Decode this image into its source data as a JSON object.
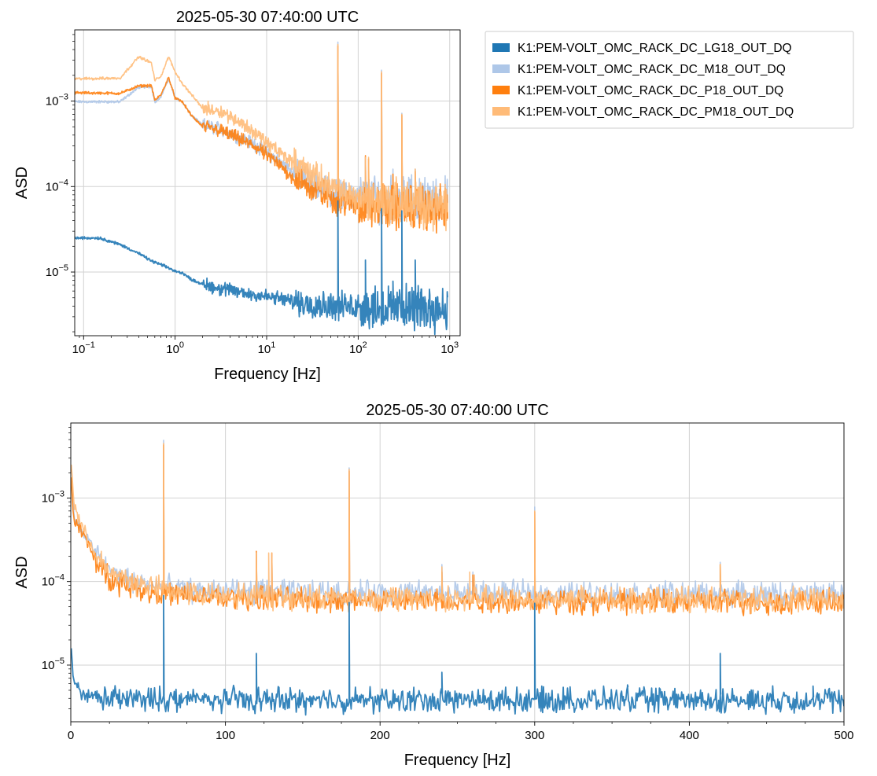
{
  "colors": {
    "LG18": "#1f77b4",
    "M18": "#aec7e8",
    "P18": "#ff7f0e",
    "PM18": "#ffbb78"
  },
  "chart_data": [
    {
      "type": "line",
      "title": "2025-05-30 07:40:00 UTC",
      "xlabel": "Frequency [Hz]",
      "ylabel": "ASD",
      "xscale": "log",
      "yscale": "log",
      "xlim": [
        0.08,
        1300
      ],
      "ylim": [
        1.8e-06,
        0.0068
      ],
      "grid": true,
      "xticks": [
        {
          "v": 0.1,
          "m": "10",
          "e": "−1"
        },
        {
          "v": 1,
          "m": "10",
          "e": "0"
        },
        {
          "v": 10,
          "m": "10",
          "e": "1"
        },
        {
          "v": 100,
          "m": "10",
          "e": "2"
        },
        {
          "v": 1000,
          "m": "10",
          "e": "3"
        }
      ],
      "yticks": [
        {
          "v": 1e-05,
          "m": "10",
          "e": "−5"
        },
        {
          "v": 0.0001,
          "m": "10",
          "e": "−4"
        },
        {
          "v": 0.001,
          "m": "10",
          "e": "−3"
        }
      ],
      "legend": {
        "position": "outside-right",
        "entries": [
          {
            "label": "K1:PEM-VOLT_OMC_RACK_DC_LG18_OUT_DQ",
            "color": "#1f77b4"
          },
          {
            "label": "K1:PEM-VOLT_OMC_RACK_DC_M18_OUT_DQ",
            "color": "#aec7e8"
          },
          {
            "label": "K1:PEM-VOLT_OMC_RACK_DC_P18_OUT_DQ",
            "color": "#ff7f0e"
          },
          {
            "label": "K1:PEM-VOLT_OMC_RACK_DC_PM18_OUT_DQ",
            "color": "#ffbb78"
          }
        ]
      },
      "series": [
        {
          "key": "M18",
          "color": "#aec7e8",
          "x": [
            0.08,
            0.25,
            0.4,
            0.55,
            0.6,
            0.7,
            0.85,
            1.0,
            1.2,
            1.5,
            2,
            3,
            5,
            8,
            12,
            20,
            35,
            60,
            120,
            250,
            500,
            950
          ],
          "y": [
            0.00098,
            0.00098,
            0.00145,
            0.00148,
            0.00098,
            0.00112,
            0.00182,
            0.0011,
            0.00098,
            0.00068,
            0.00052,
            0.00048,
            0.00038,
            0.0003,
            0.000218,
            0.000145,
            0.0001,
            8.2e-05,
            7.4e-05,
            7.2e-05,
            7.1e-05,
            7e-05
          ],
          "peaks": [
            [
              60,
              0.0049
            ],
            [
              120,
              0.00022
            ],
            [
              180,
              0.0023
            ],
            [
              240,
              0.00016
            ],
            [
              300,
              0.00072
            ],
            [
              420,
              0.00016
            ]
          ]
        },
        {
          "key": "P18",
          "color": "#ff7f0e",
          "x": [
            0.08,
            0.25,
            0.4,
            0.55,
            0.6,
            0.7,
            0.85,
            1.0,
            1.2,
            1.5,
            2,
            3,
            5,
            8,
            12,
            20,
            35,
            60,
            120,
            250,
            500,
            950
          ],
          "y": [
            0.00125,
            0.00123,
            0.0015,
            0.00152,
            0.00102,
            0.00118,
            0.0019,
            0.00108,
            0.00098,
            0.00068,
            0.0005,
            0.00046,
            0.00036,
            0.00028,
            0.0002,
            0.000125,
            8.8e-05,
            6.8e-05,
            6e-05,
            5.7e-05,
            5.6e-05,
            5.5e-05
          ],
          "peaks": [
            [
              60,
              0.0044
            ],
            [
              120,
              0.00023
            ],
            [
              130,
              0.00021
            ],
            [
              180,
              0.0021
            ],
            [
              240,
              0.00014
            ],
            [
              300,
              0.00068
            ],
            [
              420,
              0.00015
            ]
          ]
        },
        {
          "key": "PM18",
          "color": "#ffbb78",
          "x": [
            0.08,
            0.25,
            0.4,
            0.55,
            0.6,
            0.7,
            0.85,
            1.0,
            1.2,
            1.5,
            2,
            3,
            5,
            8,
            12,
            20,
            35,
            60,
            120,
            250,
            500,
            950
          ],
          "y": [
            0.00182,
            0.00185,
            0.0033,
            0.0028,
            0.00175,
            0.00195,
            0.0033,
            0.0022,
            0.0016,
            0.0012,
            0.00082,
            0.00078,
            0.00058,
            0.0004,
            0.00028,
            0.00019,
            0.00013,
            8.8e-05,
            7e-05,
            6.4e-05,
            6.2e-05,
            6e-05
          ],
          "peaks": [
            [
              60,
              0.0046
            ],
            [
              120,
              0.00022
            ],
            [
              130,
              0.00022
            ],
            [
              180,
              0.0022
            ],
            [
              260,
              0.00013
            ],
            [
              300,
              0.0007
            ],
            [
              420,
              0.00016
            ]
          ]
        },
        {
          "key": "LG18",
          "color": "#1f77b4",
          "x": [
            0.08,
            0.15,
            0.25,
            0.4,
            0.55,
            0.7,
            0.85,
            1.0,
            1.2,
            1.5,
            2,
            3,
            5,
            8,
            12,
            20,
            35,
            60,
            120,
            250,
            500,
            950
          ],
          "y": [
            2.5e-05,
            2.5e-05,
            2.1e-05,
            1.65e-05,
            1.35e-05,
            1.22e-05,
            1.12e-05,
            1.02e-05,
            9.8e-06,
            8.2e-06,
            7.2e-06,
            6.5e-06,
            5.8e-06,
            5.4e-06,
            5e-06,
            4.5e-06,
            4.2e-06,
            4e-06,
            3.9e-06,
            3.8e-06,
            3.8e-06,
            3.8e-06
          ],
          "peaks": [
            [
              60,
              6.8e-05
            ],
            [
              120,
              1.38e-05
            ],
            [
              180,
              5.5e-05
            ],
            [
              240,
              7.8e-06
            ],
            [
              300,
              5.2e-05
            ],
            [
              360,
              5.8e-06
            ],
            [
              420,
              1.38e-05
            ],
            [
              480,
              5.8e-06
            ]
          ]
        }
      ]
    },
    {
      "type": "line",
      "title": "2025-05-30 07:40:00 UTC",
      "xlabel": "Frequency [Hz]",
      "ylabel": "ASD",
      "xscale": "linear",
      "yscale": "log",
      "xlim": [
        0,
        500
      ],
      "ylim": [
        2.1e-06,
        0.0079
      ],
      "grid": true,
      "xticks": [
        {
          "v": 0,
          "t": "0"
        },
        {
          "v": 100,
          "t": "100"
        },
        {
          "v": 200,
          "t": "200"
        },
        {
          "v": 300,
          "t": "300"
        },
        {
          "v": 400,
          "t": "400"
        },
        {
          "v": 500,
          "t": "500"
        }
      ],
      "yticks": [
        {
          "v": 1e-05,
          "m": "10",
          "e": "−5"
        },
        {
          "v": 0.0001,
          "m": "10",
          "e": "−4"
        },
        {
          "v": 0.001,
          "m": "10",
          "e": "−3"
        }
      ],
      "series": [
        {
          "key": "M18",
          "color": "#aec7e8",
          "x": [
            0,
            1,
            2,
            3,
            5,
            8,
            12,
            16,
            20,
            25,
            30,
            40,
            50,
            60,
            80,
            120,
            200,
            300,
            400,
            500
          ],
          "y": [
            0.0016,
            0.00098,
            0.00068,
            0.00052,
            0.00048,
            0.00038,
            0.0003,
            0.00022,
            0.00017,
            0.00014,
            0.00012,
            0.0001,
            9.2e-05,
            8.5e-05,
            7.8e-05,
            7.5e-05,
            7.3e-05,
            7.2e-05,
            7.1e-05,
            7e-05
          ],
          "peaks": [
            [
              60,
              0.0049
            ],
            [
              120,
              0.00022
            ],
            [
              130,
              0.00021
            ],
            [
              180,
              0.0023
            ],
            [
              240,
              0.00016
            ],
            [
              260,
              0.00013
            ],
            [
              300,
              0.00078
            ],
            [
              420,
              0.00017
            ]
          ]
        },
        {
          "key": "P18",
          "color": "#ff7f0e",
          "x": [
            0,
            1,
            2,
            3,
            5,
            8,
            12,
            16,
            20,
            25,
            30,
            40,
            50,
            60,
            80,
            120,
            200,
            300,
            400,
            500
          ],
          "y": [
            0.0019,
            0.00098,
            0.00062,
            0.0005,
            0.00046,
            0.00036,
            0.00026,
            0.00018,
            0.000135,
            0.00011,
            0.0001,
            8.8e-05,
            7.8e-05,
            7.2e-05,
            6.6e-05,
            6.2e-05,
            5.9e-05,
            5.8e-05,
            5.7e-05,
            5.6e-05
          ],
          "peaks": [
            [
              60,
              0.0043
            ],
            [
              120,
              0.00023
            ],
            [
              130,
              0.00022
            ],
            [
              180,
              0.0021
            ],
            [
              240,
              0.00013
            ],
            [
              260,
              0.00012
            ],
            [
              300,
              0.00068
            ],
            [
              420,
              0.00016
            ]
          ]
        },
        {
          "key": "PM18",
          "color": "#ffbb78",
          "x": [
            0,
            1,
            2,
            3,
            5,
            8,
            12,
            16,
            20,
            25,
            30,
            40,
            50,
            60,
            80,
            120,
            200,
            300,
            400,
            500
          ],
          "y": [
            0.0033,
            0.0016,
            0.00082,
            0.00078,
            0.00058,
            0.00042,
            0.0003,
            0.00021,
            0.00016,
            0.00013,
            0.000115,
            0.0001,
            8.8e-05,
            8e-05,
            7.2e-05,
            6.6e-05,
            6.3e-05,
            6.2e-05,
            6.1e-05,
            6e-05
          ],
          "peaks": [
            [
              60,
              0.0045
            ],
            [
              120,
              0.00022
            ],
            [
              128,
              0.00022
            ],
            [
              130,
              0.00022
            ],
            [
              180,
              0.0022
            ],
            [
              240,
              0.00015
            ],
            [
              258,
              0.00013
            ],
            [
              261,
              0.00012
            ],
            [
              300,
              0.0007
            ],
            [
              420,
              0.00016
            ]
          ]
        },
        {
          "key": "LG18",
          "color": "#1f77b4",
          "x": [
            0,
            0.5,
            1,
            2,
            3,
            5,
            8,
            12,
            20,
            40,
            80,
            150,
            250,
            350,
            450,
            500
          ],
          "y": [
            2.5e-05,
            1.2e-05,
            8.5e-06,
            6.5e-06,
            5.8e-06,
            5.2e-06,
            4.6e-06,
            4.2e-06,
            4e-06,
            3.9e-06,
            3.9e-06,
            3.8e-06,
            3.8e-06,
            3.8e-06,
            3.8e-06,
            3.8e-06
          ],
          "peaks": [
            [
              60,
              6.8e-05
            ],
            [
              120,
              1.38e-05
            ],
            [
              180,
              5.6e-05
            ],
            [
              240,
              8.2e-06
            ],
            [
              300,
              5.5e-05
            ],
            [
              360,
              5.8e-06
            ],
            [
              420,
              1.38e-05
            ],
            [
              480,
              5.6e-06
            ]
          ]
        }
      ]
    }
  ]
}
